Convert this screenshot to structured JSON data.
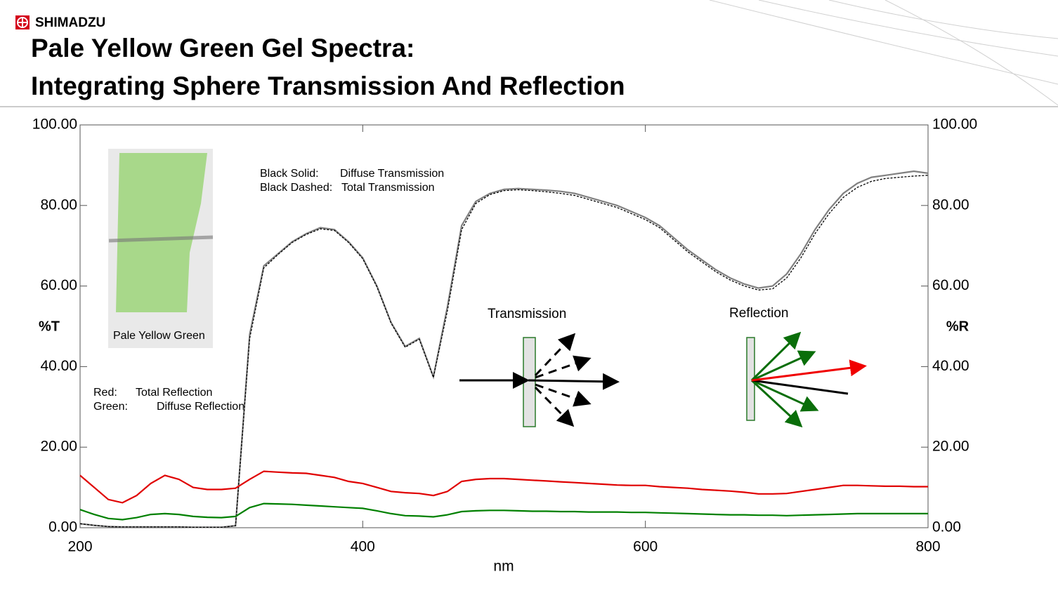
{
  "header": {
    "brand": "SHIMADZU",
    "title_lines": [
      "Pale Yellow Green Gel Spectra:",
      "Integrating Sphere Transmission And Reflection"
    ]
  },
  "chart_data": {
    "type": "line",
    "x_label": "nm",
    "y_label": "%T",
    "y2_label": "%R",
    "xlim": [
      200,
      800
    ],
    "xticks": [
      200,
      400,
      600,
      800
    ],
    "ylim": [
      0,
      100
    ],
    "yticks": [
      {
        "value": 0,
        "label": "0.00"
      },
      {
        "value": 20,
        "label": "20.00"
      },
      {
        "value": 40,
        "label": "40.00"
      },
      {
        "value": 60,
        "label": "60.00"
      },
      {
        "value": 80,
        "label": "80.00"
      },
      {
        "value": 100,
        "label": "100.00"
      }
    ],
    "y2lim": [
      0,
      100
    ],
    "y2ticks": [
      {
        "value": 0,
        "label": "0.00"
      },
      {
        "value": 20,
        "label": "20.00"
      },
      {
        "value": 40,
        "label": "40.00"
      },
      {
        "value": 60,
        "label": "60.00"
      },
      {
        "value": 80,
        "label": "80.00"
      },
      {
        "value": 100,
        "label": "100.00"
      }
    ],
    "x": [
      200,
      210,
      220,
      230,
      240,
      250,
      260,
      270,
      280,
      290,
      300,
      310,
      320,
      330,
      340,
      350,
      360,
      370,
      380,
      390,
      400,
      410,
      420,
      430,
      440,
      450,
      460,
      470,
      480,
      490,
      500,
      510,
      520,
      530,
      540,
      550,
      560,
      570,
      580,
      590,
      600,
      610,
      620,
      630,
      640,
      650,
      660,
      670,
      680,
      690,
      700,
      710,
      720,
      730,
      740,
      750,
      760,
      770,
      780,
      790,
      800
    ],
    "series": [
      {
        "name": "Diffuse Transmission",
        "color": "#808080",
        "dash": false,
        "values": [
          1.0,
          0.6,
          0.3,
          0.2,
          0.2,
          0.2,
          0.2,
          0.2,
          0.1,
          0.1,
          0.1,
          0.5,
          48,
          65,
          68,
          71,
          73,
          74.5,
          74,
          71,
          67,
          60,
          51,
          45,
          47,
          37.5,
          55,
          75,
          81,
          83,
          84,
          84.2,
          84,
          83.8,
          83.5,
          83,
          82,
          81,
          80,
          78.5,
          77,
          75,
          72,
          69,
          66.5,
          64,
          62,
          60.5,
          59.5,
          60,
          63,
          68,
          74,
          79,
          83,
          85.5,
          87,
          87.5,
          88,
          88.5,
          88
        ]
      },
      {
        "name": "Total Transmission",
        "color": "#000000",
        "dash": true,
        "values": [
          1.0,
          0.6,
          0.3,
          0.2,
          0.2,
          0.2,
          0.2,
          0.2,
          0.1,
          0.1,
          0.1,
          0.5,
          47,
          64.5,
          67.8,
          70.8,
          72.8,
          74.2,
          73.8,
          70.8,
          66.8,
          59.8,
          50.8,
          44.8,
          46.8,
          37.3,
          54,
          74,
          80.5,
          82.7,
          83.7,
          83.9,
          83.7,
          83.4,
          83,
          82.5,
          81.5,
          80.5,
          79.5,
          78,
          76.5,
          74.5,
          71.5,
          68.5,
          66,
          63.5,
          61.5,
          60,
          59,
          59.3,
          62,
          67,
          73,
          78,
          82,
          84.5,
          86,
          86.7,
          87,
          87.3,
          87.5
        ]
      },
      {
        "name": "Total Reflection",
        "color": "#e00000",
        "dash": false,
        "axis": "y2",
        "values": [
          13,
          10,
          7,
          6.2,
          8,
          11,
          13,
          12,
          10,
          9.5,
          9.5,
          9.8,
          12,
          14,
          13.8,
          13.6,
          13.5,
          13,
          12.5,
          11.5,
          11,
          10,
          9,
          8.7,
          8.5,
          8,
          9,
          11.5,
          12,
          12.2,
          12.2,
          12,
          11.8,
          11.6,
          11.4,
          11.2,
          11,
          10.8,
          10.6,
          10.5,
          10.5,
          10.2,
          10,
          9.8,
          9.5,
          9.3,
          9.1,
          8.8,
          8.4,
          8.4,
          8.5,
          9,
          9.5,
          10,
          10.5,
          10.5,
          10.4,
          10.3,
          10.3,
          10.2,
          10.2
        ]
      },
      {
        "name": "Diffuse Reflection",
        "color": "#008000",
        "dash": false,
        "axis": "y2",
        "values": [
          4.5,
          3.3,
          2.3,
          2,
          2.5,
          3.3,
          3.5,
          3.3,
          2.8,
          2.6,
          2.5,
          2.8,
          5,
          6,
          5.9,
          5.8,
          5.6,
          5.4,
          5.2,
          5,
          4.8,
          4.2,
          3.5,
          3,
          2.9,
          2.7,
          3.2,
          4,
          4.2,
          4.3,
          4.3,
          4.2,
          4.1,
          4.1,
          4,
          4,
          3.9,
          3.9,
          3.9,
          3.8,
          3.8,
          3.7,
          3.6,
          3.5,
          3.4,
          3.3,
          3.2,
          3.2,
          3.1,
          3.1,
          3,
          3.1,
          3.2,
          3.3,
          3.4,
          3.5,
          3.5,
          3.5,
          3.5,
          3.5,
          3.5
        ]
      }
    ],
    "annotations": {
      "transmission_key": [
        {
          "key": "Black Solid:",
          "series": 0
        },
        {
          "key": "Black Dashed:",
          "series": 1
        }
      ],
      "reflection_key": [
        {
          "key": "Red:",
          "series": 2
        },
        {
          "key": "Green:",
          "series": 3
        }
      ],
      "photo_label": "Pale Yellow Green",
      "diagram_transmission": "Transmission",
      "diagram_reflection": "Reflection"
    }
  }
}
